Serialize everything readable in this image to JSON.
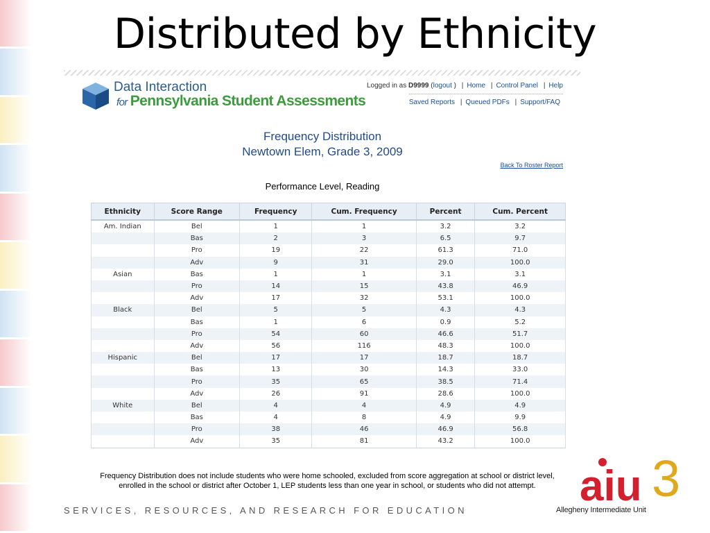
{
  "slide": {
    "title": "Distributed by Ethnicity",
    "tagline": "SERVICES, RESOURCES, AND RESEARCH FOR EDUCATION",
    "stripe_colors": [
      "#f7c9cc",
      "#cfe3f3",
      "#fbefc0",
      "#cfe3f3",
      "#f7c9cc",
      "#fbefc0",
      "#cfe3f3",
      "#f7c9cc",
      "#cfe3f3",
      "#fbefc0",
      "#f7c9cc"
    ]
  },
  "app": {
    "logo_line1": "Data Interaction",
    "logo_for": "for",
    "logo_line2": "Pennsylvania Student Assessments",
    "logged_in_prefix": "Logged in as",
    "user_id": "D9999",
    "logout": "logout",
    "nav": {
      "home": "Home",
      "control_panel": "Control Panel",
      "help": "Help"
    },
    "subnav": {
      "saved_reports": "Saved Reports",
      "queued_pdfs": "Queued PDFs",
      "support": "Support/FAQ"
    }
  },
  "report": {
    "title_line1": "Frequency Distribution",
    "title_line2": "Newtown Elem, Grade 3, 2009",
    "back_link": "Back To Roster Report",
    "subtitle": "Performance Level, Reading",
    "columns": [
      "Ethnicity",
      "Score Range",
      "Frequency",
      "Cum. Frequency",
      "Percent",
      "Cum. Percent"
    ],
    "rows": [
      [
        "Am. Indian",
        "Bel",
        "1",
        "1",
        "3.2",
        "3.2"
      ],
      [
        "",
        "Bas",
        "2",
        "3",
        "6.5",
        "9.7"
      ],
      [
        "",
        "Pro",
        "19",
        "22",
        "61.3",
        "71.0"
      ],
      [
        "",
        "Adv",
        "9",
        "31",
        "29.0",
        "100.0"
      ],
      [
        "Asian",
        "Bas",
        "1",
        "1",
        "3.1",
        "3.1"
      ],
      [
        "",
        "Pro",
        "14",
        "15",
        "43.8",
        "46.9"
      ],
      [
        "",
        "Adv",
        "17",
        "32",
        "53.1",
        "100.0"
      ],
      [
        "Black",
        "Bel",
        "5",
        "5",
        "4.3",
        "4.3"
      ],
      [
        "",
        "Bas",
        "1",
        "6",
        "0.9",
        "5.2"
      ],
      [
        "",
        "Pro",
        "54",
        "60",
        "46.6",
        "51.7"
      ],
      [
        "",
        "Adv",
        "56",
        "116",
        "48.3",
        "100.0"
      ],
      [
        "Hispanic",
        "Bel",
        "17",
        "17",
        "18.7",
        "18.7"
      ],
      [
        "",
        "Bas",
        "13",
        "30",
        "14.3",
        "33.0"
      ],
      [
        "",
        "Pro",
        "35",
        "65",
        "38.5",
        "71.4"
      ],
      [
        "",
        "Adv",
        "26",
        "91",
        "28.6",
        "100.0"
      ],
      [
        "White",
        "Bel",
        "4",
        "4",
        "4.9",
        "4.9"
      ],
      [
        "",
        "Bas",
        "4",
        "8",
        "4.9",
        "9.9"
      ],
      [
        "",
        "Pro",
        "38",
        "46",
        "46.9",
        "56.8"
      ],
      [
        "",
        "Adv",
        "35",
        "81",
        "43.2",
        "100.0"
      ]
    ],
    "footnote_line1": "Frequency Distribution does not include students who were home schooled, excluded from score aggregation at school or district level,",
    "footnote_line2": "enrolled in the school or district after October 1, LEP students less than one year in school, or students who did not attempt."
  },
  "aiu": {
    "logo_text": "aiu",
    "logo_number": "3",
    "caption": "Allegheny Intermediate Unit",
    "colors": {
      "red": "#d3202f",
      "blue": "#1e5aa8",
      "gold": "#e2a81b"
    }
  }
}
